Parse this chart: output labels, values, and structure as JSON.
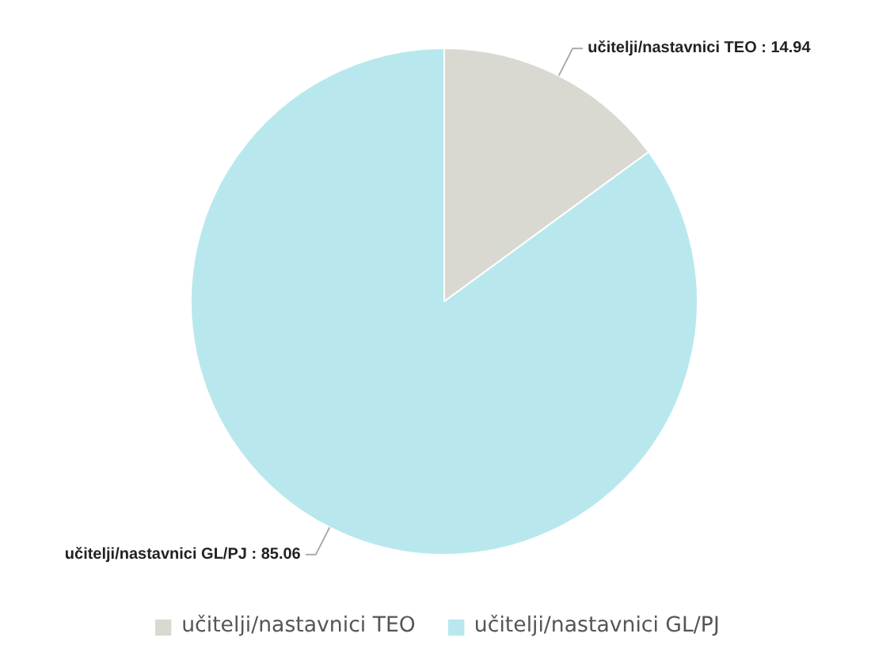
{
  "chart_data": {
    "type": "pie",
    "categories": [
      "učitelji/nastavnici TEO",
      "učitelji/nastavnici GL/PJ"
    ],
    "values": [
      14.94,
      85.06
    ],
    "colors": [
      "#d9d9d2",
      "#b8e8ee"
    ],
    "value_labels": [
      "učitelji/nastavnici TEO : 14.94",
      "učitelji/nastavnici GL/PJ : 85.06"
    ],
    "legend": "bottom"
  }
}
